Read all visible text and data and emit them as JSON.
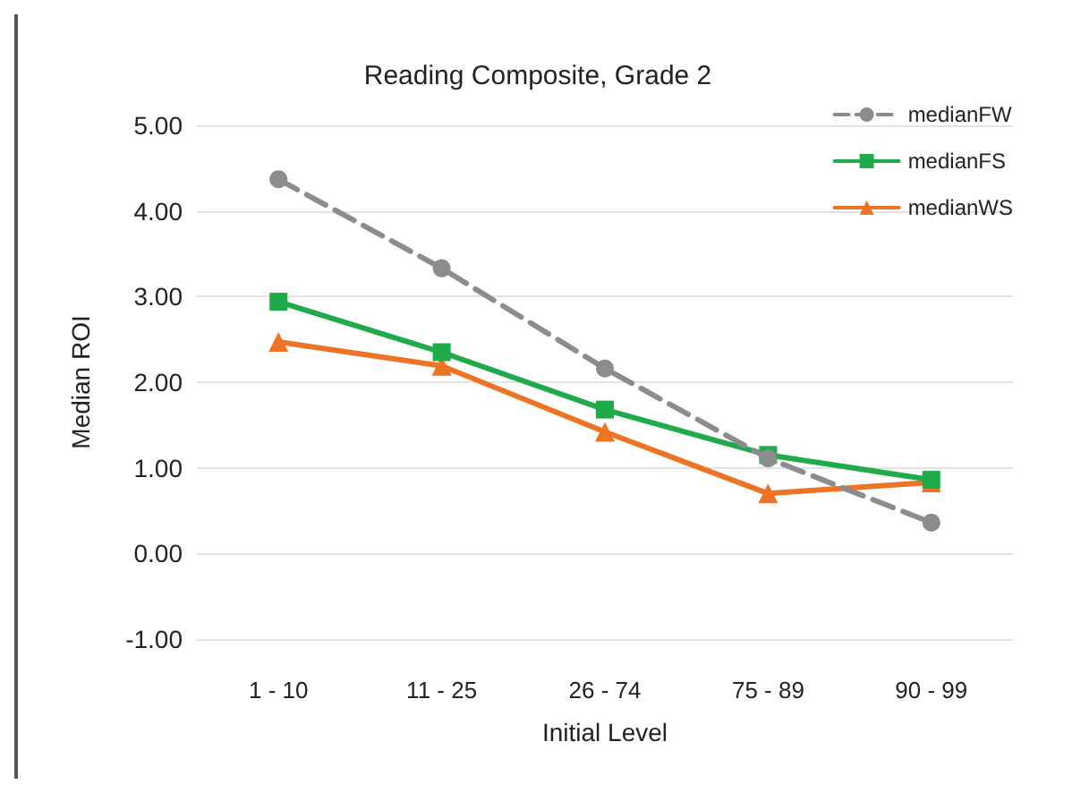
{
  "chart_data": {
    "type": "line",
    "title": "Reading Composite, Grade 2",
    "xlabel": "Initial Level",
    "ylabel": "Median ROI",
    "categories": [
      "1 - 10",
      "11 - 25",
      "26 - 74",
      "75 - 89",
      "90 - 99"
    ],
    "series": [
      {
        "name": "medianFW",
        "color": "#8c8c8c",
        "marker": "circle",
        "line_style": "dashed",
        "values": [
          4.37,
          3.33,
          2.16,
          1.11,
          0.36
        ]
      },
      {
        "name": "medianFS",
        "color": "#1fab4a",
        "marker": "square",
        "line_style": "solid",
        "values": [
          2.94,
          2.35,
          1.68,
          1.15,
          0.86
        ]
      },
      {
        "name": "medianWS",
        "color": "#ed7424",
        "marker": "triangle",
        "line_style": "solid",
        "values": [
          2.47,
          2.19,
          1.42,
          0.7,
          0.83
        ]
      }
    ],
    "ylim": [
      -1,
      5
    ],
    "yticks": [
      {
        "value": -1,
        "label": "-1.00"
      },
      {
        "value": 0,
        "label": "0.00"
      },
      {
        "value": 1,
        "label": "1.00"
      },
      {
        "value": 2,
        "label": "2.00"
      },
      {
        "value": 3,
        "label": "3.00"
      },
      {
        "value": 4,
        "label": "4.00"
      },
      {
        "value": 5,
        "label": "5.00"
      }
    ],
    "grid": "y",
    "legend": "top right"
  }
}
